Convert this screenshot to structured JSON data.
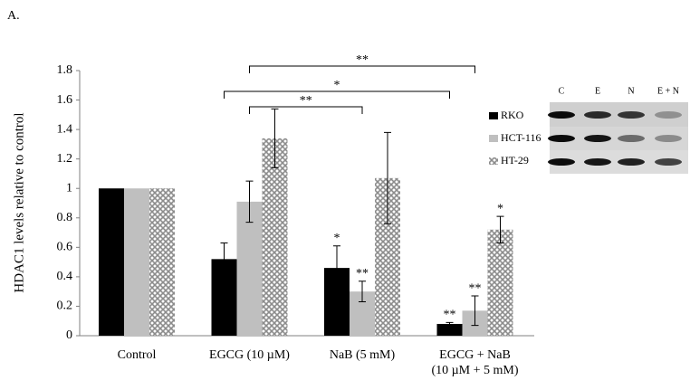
{
  "panel_label": "A.",
  "chart_data": {
    "type": "bar",
    "y_label": "HDAC1 levels relative to control",
    "categories": [
      "Control",
      "EGCG (10 µM)",
      "NaB (5 mM)",
      "EGCG + NaB\n(10 µM + 5 mM)"
    ],
    "series": [
      {
        "name": "RKO",
        "color": "#000000",
        "values": [
          1,
          0.52,
          0.46,
          0.08
        ],
        "errors": [
          null,
          0.11,
          0.15,
          0.01
        ],
        "significance": [
          null,
          null,
          "*",
          "**"
        ]
      },
      {
        "name": "HCT-116",
        "color": "#bfbfbf",
        "values": [
          1,
          0.91,
          0.3,
          0.17
        ],
        "errors": [
          null,
          0.14,
          0.07,
          0.1
        ],
        "significance": [
          null,
          null,
          "**",
          "**"
        ]
      },
      {
        "name": "HT-29",
        "color": "#9a9a9a",
        "pattern": "crosshatch",
        "values": [
          1,
          1.34,
          1.07,
          0.72
        ],
        "errors": [
          null,
          0.2,
          0.31,
          0.09
        ],
        "significance": [
          null,
          null,
          null,
          "*"
        ]
      }
    ],
    "brackets": [
      {
        "label": "**"
      },
      {
        "label": "*"
      },
      {
        "label": "**"
      }
    ],
    "ylim": [
      0,
      1.8
    ],
    "yticks": [
      0,
      0.2,
      0.4,
      0.6,
      0.8,
      1,
      1.2,
      1.4,
      1.6,
      1.8
    ],
    "inset_labels": [
      "C",
      "E",
      "N",
      "E + N"
    ]
  }
}
